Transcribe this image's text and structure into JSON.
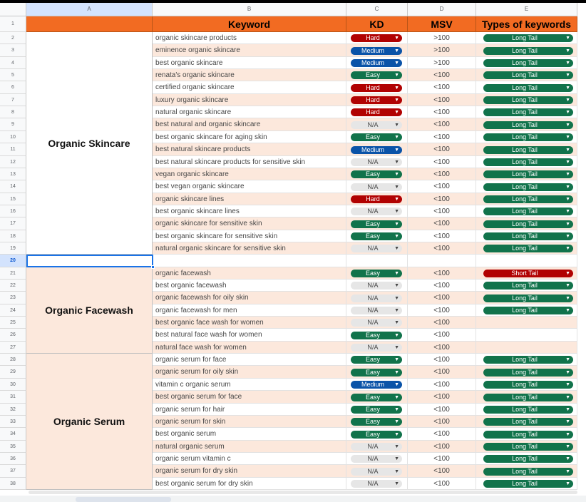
{
  "columns": [
    "A",
    "B",
    "C",
    "D",
    "E"
  ],
  "header": {
    "keyword": "Keyword",
    "kd": "KD",
    "msv": "MSV",
    "types": "Types of keywords"
  },
  "colors": {
    "hard": "#b10202",
    "medium": "#0a53a8",
    "easy": "#11734b",
    "na": "#e6e6e6",
    "short_tail": "#b10202",
    "long_tail": "#11734b",
    "header_bg": "#f26b22"
  },
  "groups": [
    {
      "label": "Organic Skincare",
      "start_row": 2,
      "end_row": 19
    },
    {
      "label": "Organic Facewash",
      "start_row": 21,
      "end_row": 27
    },
    {
      "label": "Organic Serum",
      "start_row": 28,
      "end_row": 38
    }
  ],
  "selected_row": 20,
  "rows": [
    {
      "n": 2,
      "keyword": "organic skincare products",
      "kd": "Hard",
      "msv": ">100",
      "type": "Long Tail"
    },
    {
      "n": 3,
      "keyword": "eminence organic skincare",
      "kd": "Medium",
      "msv": ">100",
      "type": "Long Tail"
    },
    {
      "n": 4,
      "keyword": "best organic skincare",
      "kd": "Medium",
      "msv": ">100",
      "type": "Long Tail"
    },
    {
      "n": 5,
      "keyword": "renata's organic skincare",
      "kd": "Easy",
      "msv": "<100",
      "type": "Long Tail"
    },
    {
      "n": 6,
      "keyword": "certified organic skincare",
      "kd": "Hard",
      "msv": "<100",
      "type": "Long Tail"
    },
    {
      "n": 7,
      "keyword": "luxury organic skincare",
      "kd": "Hard",
      "msv": "<100",
      "type": "Long Tail"
    },
    {
      "n": 8,
      "keyword": "natural organic skincare",
      "kd": "Hard",
      "msv": "<100",
      "type": "Long Tail"
    },
    {
      "n": 9,
      "keyword": "best natural and organic skincare",
      "kd": "N/A",
      "msv": "<100",
      "type": "Long Tail"
    },
    {
      "n": 10,
      "keyword": "best organic skincare for aging skin",
      "kd": "Easy",
      "msv": "<100",
      "type": "Long Tail"
    },
    {
      "n": 11,
      "keyword": "best natural skincare products",
      "kd": "Medium",
      "msv": "<100",
      "type": "Long Tail"
    },
    {
      "n": 12,
      "keyword": "best natural skincare products for sensitive skin",
      "kd": "N/A",
      "msv": "<100",
      "type": "Long Tail"
    },
    {
      "n": 13,
      "keyword": "vegan organic skincare",
      "kd": "Easy",
      "msv": "<100",
      "type": "Long Tail"
    },
    {
      "n": 14,
      "keyword": "best vegan organic skincare",
      "kd": "N/A",
      "msv": "<100",
      "type": "Long Tail"
    },
    {
      "n": 15,
      "keyword": "organic skincare lines",
      "kd": "Hard",
      "msv": "<100",
      "type": "Long Tail"
    },
    {
      "n": 16,
      "keyword": "best organic skincare lines",
      "kd": "N/A",
      "msv": "<100",
      "type": "Long Tail"
    },
    {
      "n": 17,
      "keyword": "organic skincare for sensitive skin",
      "kd": "Easy",
      "msv": "<100",
      "type": "Long Tail"
    },
    {
      "n": 18,
      "keyword": "best organic skincare for sensitive skin",
      "kd": "Easy",
      "msv": "<100",
      "type": "Long Tail"
    },
    {
      "n": 19,
      "keyword": "natural organic skincare for sensitive skin",
      "kd": "N/A",
      "msv": "<100",
      "type": "Long Tail"
    },
    {
      "n": 20,
      "keyword": "",
      "kd": "",
      "msv": "",
      "type": ""
    },
    {
      "n": 21,
      "keyword": "organic facewash",
      "kd": "Easy",
      "msv": "<100",
      "type": "Short Tail"
    },
    {
      "n": 22,
      "keyword": "best organic facewash",
      "kd": "N/A",
      "msv": "<100",
      "type": "Long Tail"
    },
    {
      "n": 23,
      "keyword": "organic facewash for oily skin",
      "kd": "N/A",
      "msv": "<100",
      "type": "Long Tail"
    },
    {
      "n": 24,
      "keyword": "organic facewash for men",
      "kd": "N/A",
      "msv": "<100",
      "type": "Long Tail"
    },
    {
      "n": 25,
      "keyword": "best organic face wash for women",
      "kd": "N/A",
      "msv": "<100",
      "type": ""
    },
    {
      "n": 26,
      "keyword": "best natural face wash for women",
      "kd": "Easy",
      "msv": "<100",
      "type": ""
    },
    {
      "n": 27,
      "keyword": "natural face wash for women",
      "kd": "N/A",
      "msv": "<100",
      "type": ""
    },
    {
      "n": 28,
      "keyword": "organic serum for face",
      "kd": "Easy",
      "msv": "<100",
      "type": "Long Tail"
    },
    {
      "n": 29,
      "keyword": "organic serum for oily skin",
      "kd": "Easy",
      "msv": "<100",
      "type": "Long Tail"
    },
    {
      "n": 30,
      "keyword": "vitamin c organic serum",
      "kd": "Medium",
      "msv": "<100",
      "type": "Long Tail"
    },
    {
      "n": 31,
      "keyword": "best organic serum for face",
      "kd": "Easy",
      "msv": "<100",
      "type": "Long Tail"
    },
    {
      "n": 32,
      "keyword": "organic serum for hair",
      "kd": "Easy",
      "msv": "<100",
      "type": "Long Tail"
    },
    {
      "n": 33,
      "keyword": "organic serum for skin",
      "kd": "Easy",
      "msv": "<100",
      "type": "Long Tail"
    },
    {
      "n": 34,
      "keyword": "best organic serum",
      "kd": "Easy",
      "msv": "<100",
      "type": "Long Tail"
    },
    {
      "n": 35,
      "keyword": "natural organic serum",
      "kd": "N/A",
      "msv": "<100",
      "type": "Long Tail"
    },
    {
      "n": 36,
      "keyword": "organic serum vitamin c",
      "kd": "N/A",
      "msv": "<100",
      "type": "Long Tail"
    },
    {
      "n": 37,
      "keyword": "organic serum for dry skin",
      "kd": "N/A",
      "msv": "<100",
      "type": "Long Tail"
    },
    {
      "n": 38,
      "keyword": "best organic serum for dry skin",
      "kd": "N/A",
      "msv": "<100",
      "type": "Long Tail"
    }
  ]
}
